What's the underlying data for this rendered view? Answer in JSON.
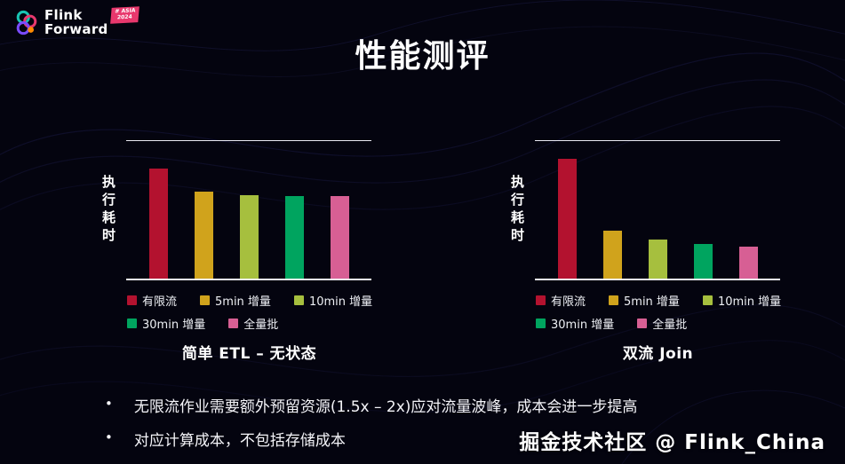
{
  "page": {
    "title": "性能测评",
    "watermark": "掘金技术社区 @ Flink_China"
  },
  "logo": {
    "line1": "Flink",
    "line2": "Forward",
    "badge_line1": "# ASIA",
    "badge_line2": "2024"
  },
  "bullets": [
    "无限流作业需要额外预留资源(1.5x – 2x)应对流量波峰，成本会进一步提高",
    "对应计算成本，不包括存储成本"
  ],
  "colors": {
    "background": "#04040f",
    "bounded_stream": "#b3122f",
    "inc_5min": "#d0a31c",
    "inc_10min": "#a6bf3e",
    "inc_30min": "#00a45f",
    "full_batch": "#d75f94"
  },
  "chart_data": [
    {
      "type": "bar",
      "title": "简单 ETL – 无状态",
      "ylabel": "执行耗时",
      "xlabel": "",
      "categories": [
        "有限流",
        "5min 增量",
        "10min 增量",
        "30min 增量",
        "全量批"
      ],
      "values": [
        100,
        79,
        76,
        75,
        75
      ],
      "colors": [
        "#b3122f",
        "#d0a31c",
        "#a6bf3e",
        "#00a45f",
        "#d75f94"
      ],
      "ylim": [
        0,
        125
      ],
      "grid": false,
      "legend_position": "bottom"
    },
    {
      "type": "bar",
      "title": "双流 Join",
      "ylabel": "执行耗时",
      "xlabel": "",
      "categories": [
        "有限流",
        "5min 增量",
        "10min 增量",
        "30min 增量",
        "全量批"
      ],
      "values": [
        100,
        40,
        33,
        29,
        27
      ],
      "colors": [
        "#b3122f",
        "#d0a31c",
        "#a6bf3e",
        "#00a45f",
        "#d75f94"
      ],
      "ylim": [
        0,
        115
      ],
      "grid": false,
      "legend_position": "bottom"
    }
  ]
}
